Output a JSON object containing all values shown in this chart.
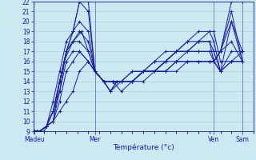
{
  "xlabel": "Température (°c)",
  "ylim": [
    9,
    22
  ],
  "xlim": [
    0,
    10
  ],
  "yticks": [
    9,
    10,
    11,
    12,
    13,
    14,
    15,
    16,
    17,
    18,
    19,
    20,
    21,
    22
  ],
  "bg_color": "#cce8f0",
  "grid_color": "#aac8d8",
  "line_color": "#1a1aaa",
  "xtick_positions": [
    0.05,
    2.8,
    8.2,
    9.5
  ],
  "xtick_labels": [
    "Madeu",
    "Mer",
    "Ven",
    "Sam"
  ],
  "vlines": [
    2.8,
    8.2,
    9.5
  ],
  "series": [
    {
      "x": [
        0.05,
        0.15,
        0.3,
        0.6,
        0.9,
        1.2,
        1.5,
        1.8,
        2.1,
        2.5,
        2.8,
        3.2,
        3.6,
        4.0,
        4.5,
        5.0,
        5.5,
        6.0,
        6.5,
        7.0,
        7.5,
        8.0,
        8.2,
        8.5,
        9.0,
        9.5
      ],
      "y": [
        9,
        9,
        9,
        9.5,
        10,
        11,
        12,
        13,
        15,
        16,
        15,
        14,
        14,
        14,
        14,
        14,
        15,
        15,
        15,
        16,
        16,
        16,
        16,
        17,
        21,
        16
      ]
    },
    {
      "x": [
        0.05,
        0.15,
        0.3,
        0.6,
        0.9,
        1.2,
        1.5,
        1.8,
        2.1,
        2.5,
        2.8,
        3.2,
        3.6,
        4.0,
        4.5,
        5.0,
        5.5,
        6.0,
        6.5,
        7.0,
        7.5,
        8.0,
        8.2,
        8.5,
        9.0,
        9.5
      ],
      "y": [
        9,
        9,
        9,
        9.5,
        11,
        13,
        16,
        17,
        17,
        16,
        15,
        14,
        14,
        14,
        14,
        15,
        15,
        15,
        16,
        16,
        16,
        16,
        16,
        17,
        20,
        17
      ]
    },
    {
      "x": [
        0.05,
        0.15,
        0.3,
        0.6,
        0.9,
        1.2,
        1.5,
        1.8,
        2.1,
        2.5,
        2.8,
        3.2,
        3.6,
        4.0,
        4.5,
        5.0,
        5.5,
        6.0,
        6.5,
        7.0,
        7.5,
        8.0,
        8.2,
        8.5,
        9.0,
        9.5
      ],
      "y": [
        9,
        9,
        9,
        9.5,
        10,
        12,
        15,
        16,
        17,
        16,
        15,
        14,
        14,
        14,
        14,
        15,
        15,
        15,
        16,
        16,
        16,
        16,
        16,
        17,
        22,
        22
      ]
    },
    {
      "x": [
        0.05,
        0.15,
        0.3,
        0.6,
        0.9,
        1.2,
        1.5,
        1.8,
        2.1,
        2.5,
        2.8,
        3.2,
        3.6,
        4.0,
        4.5,
        5.0,
        5.5,
        6.0,
        6.5,
        7.0,
        7.5,
        8.0,
        8.2,
        8.5,
        9.0,
        9.5
      ],
      "y": [
        9,
        9,
        9,
        9.5,
        11,
        14,
        17,
        18,
        18,
        17,
        15,
        14,
        14,
        14,
        14,
        15,
        16,
        16,
        16,
        17,
        17,
        17,
        17,
        17,
        18,
        16
      ]
    },
    {
      "x": [
        0.05,
        0.15,
        0.3,
        0.6,
        0.9,
        1.2,
        1.5,
        1.8,
        2.1,
        2.5,
        2.8,
        3.2,
        3.6,
        4.0,
        4.5,
        5.0,
        5.5,
        6.0,
        6.5,
        7.0,
        7.5,
        8.0,
        8.2,
        8.5,
        9.0,
        9.5
      ],
      "y": [
        9,
        9,
        9,
        9.5,
        12,
        15,
        18,
        19,
        20,
        19,
        15,
        14,
        14,
        14,
        15,
        15,
        16,
        17,
        17,
        18,
        18,
        18,
        16,
        15,
        17,
        17
      ]
    },
    {
      "x": [
        0.05,
        0.15,
        0.3,
        0.6,
        0.9,
        1.2,
        1.5,
        1.8,
        2.1,
        2.5,
        2.8,
        3.2,
        3.6,
        4.0,
        4.5,
        5.0,
        5.5,
        6.0,
        6.5,
        7.0,
        7.5,
        8.0,
        8.2,
        8.5,
        9.0,
        9.5
      ],
      "y": [
        9,
        9,
        9,
        9.5,
        11,
        14,
        17,
        18,
        19,
        18,
        15,
        14,
        14,
        13,
        14,
        15,
        15,
        16,
        17,
        17,
        17,
        17,
        16,
        15,
        20,
        16
      ]
    },
    {
      "x": [
        0.05,
        0.15,
        0.3,
        0.6,
        0.9,
        1.2,
        1.5,
        1.8,
        2.1,
        2.5,
        2.8,
        3.2,
        3.5,
        3.8,
        4.0,
        4.5,
        5.0,
        5.5,
        6.0,
        6.5,
        7.0,
        7.5,
        8.0,
        8.2,
        8.5,
        9.0,
        9.5
      ],
      "y": [
        9,
        9,
        9,
        9.5,
        10,
        13,
        17,
        19,
        22,
        21,
        15,
        14,
        13,
        14,
        14,
        14,
        15,
        15,
        16,
        17,
        17,
        18,
        18,
        17,
        15,
        16,
        16
      ]
    },
    {
      "x": [
        0.05,
        0.15,
        0.3,
        0.6,
        0.9,
        1.2,
        1.5,
        1.8,
        2.1,
        2.5,
        2.8,
        3.2,
        3.5,
        3.8,
        4.0,
        4.5,
        5.0,
        5.5,
        6.0,
        6.5,
        7.0,
        7.5,
        8.0,
        8.2,
        8.5,
        9.0,
        9.5
      ],
      "y": [
        9,
        9,
        9,
        9.5,
        10,
        14,
        17,
        19,
        22,
        22,
        15,
        14,
        13,
        14,
        14,
        15,
        15,
        15,
        16,
        17,
        17,
        18,
        19,
        19,
        16,
        16,
        16
      ]
    },
    {
      "x": [
        0.05,
        0.5,
        0.9,
        1.4,
        1.8,
        2.2,
        2.8,
        3.2,
        3.5,
        4.0,
        4.5,
        5.0,
        5.5,
        6.0,
        6.5,
        7.0,
        7.5,
        8.0,
        8.2,
        8.5,
        9.0,
        9.5
      ],
      "y": [
        9,
        9,
        11,
        16,
        18,
        19,
        15,
        14,
        13,
        14,
        14,
        15,
        15,
        16,
        17,
        18,
        19,
        19,
        18,
        15,
        16,
        17
      ]
    }
  ]
}
